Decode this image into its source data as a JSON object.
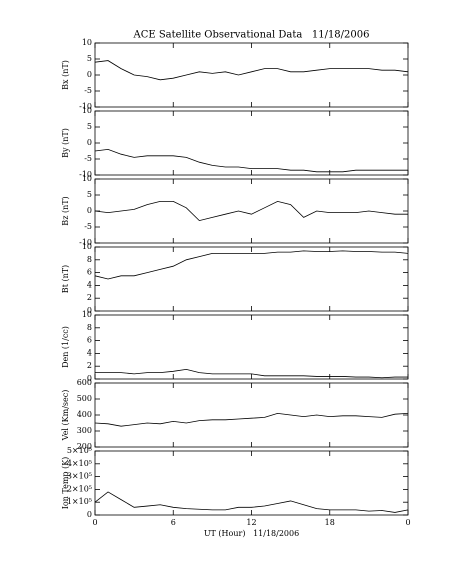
{
  "chart_data": [
    {
      "type": "line",
      "title": "ACE Satellite Observational Data   11/18/2006",
      "ylabel": "Bx (nT)",
      "x": [
        0,
        1,
        2,
        3,
        4,
        5,
        6,
        7,
        8,
        9,
        10,
        11,
        12,
        13,
        14,
        15,
        16,
        17,
        18,
        19,
        20,
        21,
        22,
        23,
        24
      ],
      "series": [
        {
          "color": "#000000",
          "values": [
            4,
            4.5,
            2,
            0,
            -0.5,
            -1.5,
            -1,
            0,
            1,
            0.5,
            1,
            0,
            1,
            2,
            2,
            1,
            1,
            1.5,
            2,
            2,
            2,
            2,
            1.5,
            1.5,
            1
          ]
        }
      ],
      "xlim": [
        0,
        24
      ],
      "ylim": [
        -10,
        10
      ],
      "yticks": [
        -10,
        -5,
        0,
        5,
        10
      ]
    },
    {
      "type": "line",
      "ylabel": "By (nT)",
      "x": [
        0,
        1,
        2,
        3,
        4,
        5,
        6,
        7,
        8,
        9,
        10,
        11,
        12,
        13,
        14,
        15,
        16,
        17,
        18,
        19,
        20,
        21,
        22,
        23,
        24
      ],
      "series": [
        {
          "color": "#000000",
          "values": [
            -2.5,
            -2,
            -3.5,
            -4.5,
            -4,
            -4,
            -4,
            -4.5,
            -6,
            -7,
            -7.5,
            -7.5,
            -8,
            -8,
            -8,
            -8.5,
            -8.5,
            -9,
            -9,
            -9,
            -8.5,
            -8.5,
            -8.5,
            -8.5,
            -8.5
          ]
        }
      ],
      "xlim": [
        0,
        24
      ],
      "ylim": [
        -10,
        10
      ],
      "yticks": [
        -10,
        -5,
        0,
        5,
        10
      ]
    },
    {
      "type": "line",
      "ylabel": "Bz (nT)",
      "x": [
        0,
        1,
        2,
        3,
        4,
        5,
        6,
        7,
        8,
        9,
        10,
        11,
        12,
        13,
        14,
        15,
        16,
        17,
        18,
        19,
        20,
        21,
        22,
        23,
        24
      ],
      "series": [
        {
          "color": "#000000",
          "values": [
            0,
            -0.5,
            0,
            0.5,
            2,
            3,
            3,
            1,
            -3,
            -2,
            -1,
            0,
            -1,
            1,
            3,
            2,
            -2,
            0,
            -0.5,
            -0.5,
            -0.5,
            0,
            -0.5,
            -1,
            -1
          ]
        }
      ],
      "xlim": [
        0,
        24
      ],
      "ylim": [
        -10,
        10
      ],
      "yticks": [
        -10,
        -5,
        0,
        5,
        10
      ]
    },
    {
      "type": "line",
      "ylabel": "Bt (nT)",
      "x": [
        0,
        1,
        2,
        3,
        4,
        5,
        6,
        7,
        8,
        9,
        10,
        11,
        12,
        13,
        14,
        15,
        16,
        17,
        18,
        19,
        20,
        21,
        22,
        23,
        24
      ],
      "series": [
        {
          "color": "#000000",
          "values": [
            5.5,
            5,
            5.5,
            5.5,
            6,
            6.5,
            7,
            8,
            8.5,
            9,
            9,
            9,
            9,
            9,
            9.2,
            9.2,
            9.4,
            9.3,
            9.3,
            9.4,
            9.3,
            9.3,
            9.2,
            9.2,
            9
          ]
        }
      ],
      "xlim": [
        0,
        24
      ],
      "ylim": [
        0,
        10
      ],
      "yticks": [
        0,
        2,
        4,
        6,
        8,
        10
      ]
    },
    {
      "type": "line",
      "ylabel": "Den (1/cc)",
      "x": [
        0,
        1,
        2,
        3,
        4,
        5,
        6,
        7,
        8,
        9,
        10,
        11,
        12,
        13,
        14,
        15,
        16,
        17,
        18,
        19,
        20,
        21,
        22,
        23,
        24
      ],
      "series": [
        {
          "color": "#000000",
          "values": [
            1,
            1,
            1,
            0.8,
            1,
            1,
            1.2,
            1.5,
            1,
            0.8,
            0.8,
            0.8,
            0.8,
            0.5,
            0.5,
            0.5,
            0.5,
            0.4,
            0.4,
            0.4,
            0.3,
            0.3,
            0.2,
            0.3,
            0.3
          ]
        }
      ],
      "xlim": [
        0,
        24
      ],
      "ylim": [
        0,
        10
      ],
      "yticks": [
        0,
        2,
        4,
        6,
        8,
        10
      ]
    },
    {
      "type": "line",
      "ylabel": "Vel (Km/sec)",
      "x": [
        0,
        1,
        2,
        3,
        4,
        5,
        6,
        7,
        8,
        9,
        10,
        11,
        12,
        13,
        14,
        15,
        16,
        17,
        18,
        19,
        20,
        21,
        22,
        23,
        24
      ],
      "series": [
        {
          "color": "#000000",
          "values": [
            350,
            345,
            330,
            340,
            350,
            345,
            360,
            350,
            365,
            370,
            370,
            375,
            380,
            385,
            410,
            400,
            390,
            400,
            390,
            395,
            395,
            390,
            385,
            405,
            410
          ]
        }
      ],
      "xlim": [
        0,
        24
      ],
      "ylim": [
        200,
        600
      ],
      "yticks": [
        200,
        300,
        400,
        500,
        600
      ]
    },
    {
      "type": "line",
      "ylabel": "Ion Temp (K)",
      "xlabel": "UT (Hour)   11/18/2006",
      "x": [
        0,
        1,
        2,
        3,
        4,
        5,
        6,
        7,
        8,
        9,
        10,
        11,
        12,
        13,
        14,
        15,
        16,
        17,
        18,
        19,
        20,
        21,
        22,
        23,
        24
      ],
      "series": [
        {
          "color": "#000000",
          "values": [
            100000,
            180000,
            120000,
            60000,
            70000,
            80000,
            60000,
            50000,
            45000,
            40000,
            40000,
            60000,
            60000,
            70000,
            90000,
            110000,
            80000,
            50000,
            40000,
            40000,
            40000,
            30000,
            35000,
            20000,
            40000
          ]
        }
      ],
      "xlim": [
        0,
        24
      ],
      "ylim": [
        0,
        500000
      ],
      "yticks": [
        0,
        {
          "value": 100000,
          "label": "1×10⁵"
        },
        {
          "value": 200000,
          "label": "2×10⁵"
        },
        {
          "value": 300000,
          "label": "3×10⁵"
        },
        {
          "value": 400000,
          "label": "4×10⁵"
        },
        {
          "value": 500000,
          "label": "5×10⁵"
        }
      ],
      "xticks": [
        0,
        6,
        12,
        18,
        {
          "value": 24,
          "label": "0"
        }
      ]
    }
  ]
}
